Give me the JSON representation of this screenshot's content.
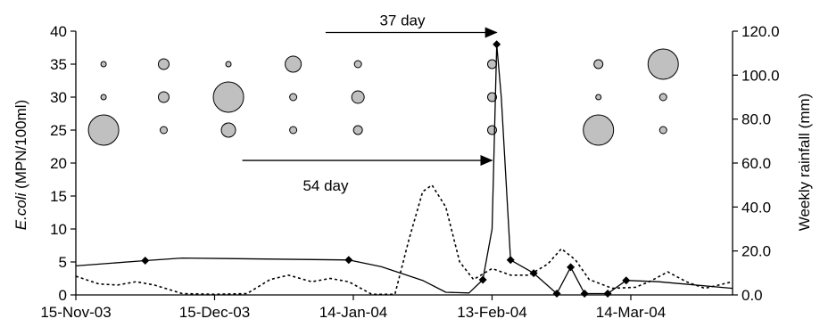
{
  "chart_data": {
    "type": "line",
    "x_axis": {
      "type": "date",
      "range": [
        "2003-11-15",
        "2004-04-05"
      ],
      "ticks": [
        "2003-11-15",
        "2003-12-15",
        "2004-01-14",
        "2004-02-13",
        "2004-03-14"
      ],
      "tick_labels": [
        "15-Nov-03",
        "15-Dec-03",
        "14-Jan-04",
        "13-Feb-04",
        "14-Mar-04"
      ]
    },
    "y_left": {
      "label_italic": "E.coli",
      "label_rest": " (MPN/100ml)",
      "range": [
        0,
        40
      ],
      "ticks": [
        0,
        5,
        10,
        15,
        20,
        25,
        30,
        35,
        40
      ],
      "tick_labels": [
        "0",
        "5",
        "10",
        "15",
        "20",
        "25",
        "30",
        "35",
        "40"
      ]
    },
    "y_right": {
      "label": "Weekly rainfall (mm)",
      "range": [
        0,
        120
      ],
      "ticks": [
        0,
        20,
        40,
        60,
        80,
        100,
        120
      ],
      "tick_labels": [
        "0.0",
        "20.0",
        "40.0",
        "60.0",
        "80.0",
        "100.0",
        "120.0"
      ]
    },
    "series": [
      {
        "style": "solid-with-diamond-markers",
        "axis": "left",
        "points": [
          {
            "x": "2003-11-15",
            "y": 4.4,
            "marker": false
          },
          {
            "x": "2003-11-30",
            "y": 5.2,
            "marker": true
          },
          {
            "x": "2003-12-08",
            "y": 5.6,
            "marker": false
          },
          {
            "x": "2004-01-13",
            "y": 5.3,
            "marker": true
          },
          {
            "x": "2004-01-20",
            "y": 4.3,
            "marker": false
          },
          {
            "x": "2004-01-29",
            "y": 2.2,
            "marker": false
          },
          {
            "x": "2004-02-03",
            "y": 0.4,
            "marker": false
          },
          {
            "x": "2004-02-08",
            "y": 0.3,
            "marker": false
          },
          {
            "x": "2004-02-11",
            "y": 2.3,
            "marker": true
          },
          {
            "x": "2004-02-13",
            "y": 10.0,
            "marker": false
          },
          {
            "x": "2004-02-14",
            "y": 38.0,
            "marker": true
          },
          {
            "x": "2004-02-15",
            "y": 30.0,
            "marker": false
          },
          {
            "x": "2004-02-17",
            "y": 5.3,
            "marker": true
          },
          {
            "x": "2004-02-22",
            "y": 3.3,
            "marker": true
          },
          {
            "x": "2004-02-27",
            "y": 0.2,
            "marker": true
          },
          {
            "x": "2004-03-01",
            "y": 4.2,
            "marker": true
          },
          {
            "x": "2004-03-04",
            "y": 0.2,
            "marker": true
          },
          {
            "x": "2004-03-09",
            "y": 0.2,
            "marker": true
          },
          {
            "x": "2004-03-13",
            "y": 2.2,
            "marker": true
          },
          {
            "x": "2004-03-20",
            "y": 2.0,
            "marker": false
          },
          {
            "x": "2004-04-05",
            "y": 1.0,
            "marker": false
          }
        ]
      },
      {
        "style": "dotted",
        "axis": "right",
        "points": [
          {
            "x": "2003-11-15",
            "y": 8.5
          },
          {
            "x": "2003-11-20",
            "y": 5
          },
          {
            "x": "2003-11-24",
            "y": 4.5
          },
          {
            "x": "2003-11-28",
            "y": 6
          },
          {
            "x": "2003-12-02",
            "y": 4.5
          },
          {
            "x": "2003-12-08",
            "y": 0.6
          },
          {
            "x": "2003-12-15",
            "y": 0.3
          },
          {
            "x": "2003-12-22",
            "y": 0.6
          },
          {
            "x": "2003-12-27",
            "y": 7
          },
          {
            "x": "2003-12-31",
            "y": 9
          },
          {
            "x": "2004-01-05",
            "y": 6
          },
          {
            "x": "2004-01-09",
            "y": 7.5
          },
          {
            "x": "2004-01-13",
            "y": 6
          },
          {
            "x": "2004-01-18",
            "y": 0.3
          },
          {
            "x": "2004-01-23",
            "y": 0.3
          },
          {
            "x": "2004-01-26",
            "y": 25
          },
          {
            "x": "2004-01-29",
            "y": 47
          },
          {
            "x": "2004-01-31",
            "y": 50
          },
          {
            "x": "2004-02-03",
            "y": 40
          },
          {
            "x": "2004-02-06",
            "y": 15
          },
          {
            "x": "2004-02-09",
            "y": 7
          },
          {
            "x": "2004-02-13",
            "y": 12
          },
          {
            "x": "2004-02-17",
            "y": 9
          },
          {
            "x": "2004-02-21",
            "y": 9
          },
          {
            "x": "2004-02-25",
            "y": 14
          },
          {
            "x": "2004-02-28",
            "y": 21
          },
          {
            "x": "2004-03-02",
            "y": 16
          },
          {
            "x": "2004-03-05",
            "y": 7
          },
          {
            "x": "2004-03-10",
            "y": 3
          },
          {
            "x": "2004-03-15",
            "y": 3.5
          },
          {
            "x": "2004-03-18",
            "y": 6
          },
          {
            "x": "2004-03-22",
            "y": 10.5
          },
          {
            "x": "2004-03-26",
            "y": 6
          },
          {
            "x": "2004-03-30",
            "y": 3
          },
          {
            "x": "2004-04-05",
            "y": 6
          }
        ]
      }
    ],
    "bubbles": [
      {
        "x": "2003-11-21",
        "y": 35,
        "r": 3
      },
      {
        "x": "2003-11-21",
        "y": 30,
        "r": 3
      },
      {
        "x": "2003-11-21",
        "y": 25,
        "r": 17
      },
      {
        "x": "2003-12-04",
        "y": 35,
        "r": 6
      },
      {
        "x": "2003-12-04",
        "y": 30,
        "r": 6
      },
      {
        "x": "2003-12-04",
        "y": 25,
        "r": 4
      },
      {
        "x": "2003-12-18",
        "y": 35,
        "r": 3
      },
      {
        "x": "2003-12-18",
        "y": 30,
        "r": 17
      },
      {
        "x": "2003-12-18",
        "y": 25,
        "r": 8
      },
      {
        "x": "2004-01-01",
        "y": 35,
        "r": 9
      },
      {
        "x": "2004-01-01",
        "y": 30,
        "r": 4
      },
      {
        "x": "2004-01-01",
        "y": 25,
        "r": 4
      },
      {
        "x": "2004-01-15",
        "y": 35,
        "r": 4
      },
      {
        "x": "2004-01-15",
        "y": 30,
        "r": 7
      },
      {
        "x": "2004-01-15",
        "y": 25,
        "r": 5
      },
      {
        "x": "2004-02-13",
        "y": 35,
        "r": 5
      },
      {
        "x": "2004-02-13",
        "y": 30,
        "r": 5
      },
      {
        "x": "2004-02-13",
        "y": 25,
        "r": 5
      },
      {
        "x": "2004-03-07",
        "y": 35,
        "r": 5
      },
      {
        "x": "2004-03-07",
        "y": 30,
        "r": 3
      },
      {
        "x": "2004-03-07",
        "y": 25,
        "r": 17
      },
      {
        "x": "2004-03-21",
        "y": 35,
        "r": 17
      },
      {
        "x": "2004-03-21",
        "y": 30,
        "r": 4
      },
      {
        "x": "2004-03-21",
        "y": 25,
        "r": 4
      }
    ],
    "annotations": [
      {
        "text": "37 day",
        "arrow_from": {
          "x": "2004-01-08",
          "y": 39.8
        },
        "arrow_to": {
          "x": "2004-02-14",
          "y": 39.8
        }
      },
      {
        "text": "54 day",
        "arrow_from": {
          "x": "2003-12-21",
          "y": 20.4
        },
        "arrow_to": {
          "x": "2004-02-13",
          "y": 20.4
        }
      }
    ],
    "grid": false,
    "legend": "none"
  },
  "colors": {
    "bubble_fill": "#c0c0c0",
    "line": "#000000"
  }
}
